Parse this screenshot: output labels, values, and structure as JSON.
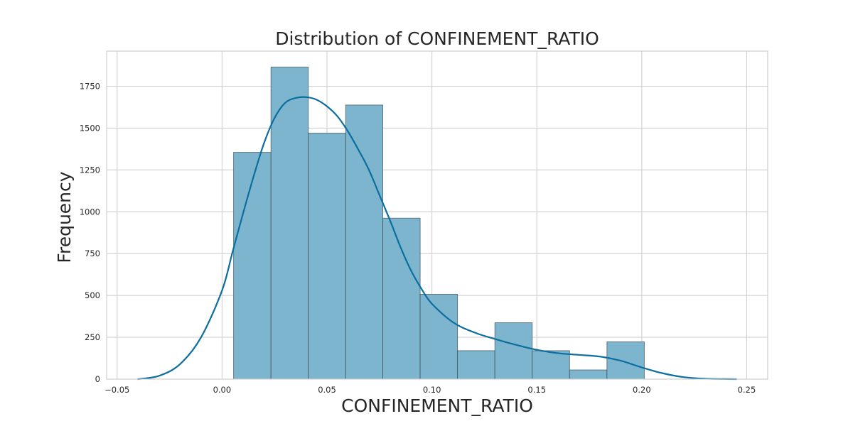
{
  "chart_data": {
    "type": "bar",
    "subtype": "histogram with kde line",
    "title": "Distribution of CONFINEMENT_RATIO",
    "xlabel": "CONFINEMENT_RATIO",
    "ylabel": "Frequency",
    "xlim": [
      -0.055,
      0.26
    ],
    "ylim": [
      0,
      1960
    ],
    "grid": true,
    "x_ticks": [
      {
        "value": -0.05,
        "label": "−0.05"
      },
      {
        "value": 0.0,
        "label": "0.00"
      },
      {
        "value": 0.05,
        "label": "0.05"
      },
      {
        "value": 0.1,
        "label": "0.10"
      },
      {
        "value": 0.15,
        "label": "0.15"
      },
      {
        "value": 0.2,
        "label": "0.20"
      },
      {
        "value": 0.25,
        "label": "0.25"
      }
    ],
    "y_ticks": [
      {
        "value": 0,
        "label": "0"
      },
      {
        "value": 250,
        "label": "250"
      },
      {
        "value": 500,
        "label": "500"
      },
      {
        "value": 750,
        "label": "750"
      },
      {
        "value": 1000,
        "label": "1000"
      },
      {
        "value": 1250,
        "label": "1250"
      },
      {
        "value": 1500,
        "label": "1500"
      },
      {
        "value": 1750,
        "label": "1750"
      }
    ],
    "bins": [
      {
        "x0": 0.0055,
        "x1": 0.0233,
        "count": 1355
      },
      {
        "x0": 0.0233,
        "x1": 0.0411,
        "count": 1865
      },
      {
        "x0": 0.0411,
        "x1": 0.0589,
        "count": 1470
      },
      {
        "x0": 0.0589,
        "x1": 0.0766,
        "count": 1638
      },
      {
        "x0": 0.0766,
        "x1": 0.0944,
        "count": 962
      },
      {
        "x0": 0.0944,
        "x1": 0.1122,
        "count": 507
      },
      {
        "x0": 0.1122,
        "x1": 0.13,
        "count": 170
      },
      {
        "x0": 0.13,
        "x1": 0.1478,
        "count": 337
      },
      {
        "x0": 0.1478,
        "x1": 0.1656,
        "count": 170
      },
      {
        "x0": 0.1656,
        "x1": 0.1834,
        "count": 55
      },
      {
        "x0": 0.1834,
        "x1": 0.2012,
        "count": 223
      }
    ],
    "kde": {
      "x": [
        -0.04,
        -0.03,
        -0.02,
        -0.01,
        0.0,
        0.005,
        0.01,
        0.015,
        0.02,
        0.025,
        0.03,
        0.035,
        0.04,
        0.045,
        0.05,
        0.055,
        0.06,
        0.065,
        0.07,
        0.075,
        0.08,
        0.085,
        0.09,
        0.095,
        0.1,
        0.11,
        0.12,
        0.13,
        0.14,
        0.15,
        0.16,
        0.17,
        0.18,
        0.19,
        0.2,
        0.21,
        0.22,
        0.23,
        0.245
      ],
      "y": [
        0,
        20,
        90,
        250,
        530,
        760,
        990,
        1210,
        1410,
        1560,
        1650,
        1680,
        1685,
        1670,
        1630,
        1570,
        1480,
        1370,
        1250,
        1100,
        950,
        790,
        650,
        540,
        450,
        340,
        280,
        240,
        205,
        175,
        155,
        145,
        135,
        110,
        70,
        35,
        12,
        3,
        0
      ]
    },
    "colors": {
      "bar_fill": "#7db5cf",
      "bar_edge": "#3a4a52",
      "kde_line": "#0c6e9e",
      "grid": "#d0d0d0",
      "frame": "#cfcfcf"
    }
  }
}
